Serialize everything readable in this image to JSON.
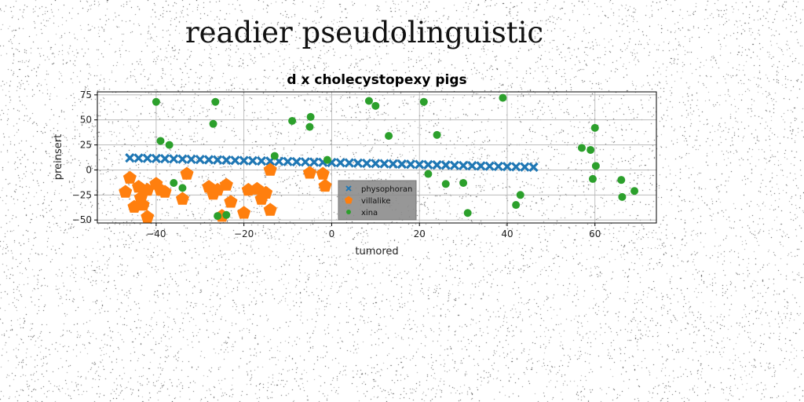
{
  "page": {
    "title": "readier pseudolinguistic"
  },
  "chart_data": {
    "type": "scatter",
    "title": "d x cholecystopexy pigs",
    "xlabel": "tumored",
    "ylabel": "preinsert",
    "xlim": [
      -53.4,
      74
    ],
    "ylim": [
      -53,
      78
    ],
    "xticks": [
      -40,
      -20,
      0,
      20,
      40,
      60
    ],
    "yticks": [
      -50,
      -25,
      0,
      25,
      50,
      75
    ],
    "grid": true,
    "legend_position": "lower-center",
    "series": [
      {
        "name": "physophoran",
        "marker": "x",
        "color": "#1f77b4",
        "x": [
          -46,
          -44,
          -42,
          -40,
          -38,
          -36,
          -34,
          -32,
          -30,
          -28,
          -26,
          -24,
          -22,
          -20,
          -18,
          -16,
          -14,
          -12,
          -10,
          -8,
          -6,
          -4,
          -2,
          0,
          2,
          4,
          6,
          8,
          10,
          12,
          14,
          16,
          18,
          20,
          22,
          24,
          26,
          28,
          30,
          32,
          34,
          36,
          38,
          40,
          42,
          44,
          46
        ],
        "y": [
          12,
          11.8,
          11.6,
          11.4,
          11.2,
          11,
          10.8,
          10.6,
          10.4,
          10.2,
          10,
          9.8,
          9.6,
          9.4,
          9.2,
          9,
          8.8,
          8.6,
          8.4,
          8.2,
          8,
          7.8,
          7.6,
          7.4,
          7.2,
          7,
          6.8,
          6.6,
          6.4,
          6.2,
          6,
          5.8,
          5.6,
          5.4,
          5.2,
          5,
          4.8,
          4.6,
          4.4,
          4.2,
          4,
          3.8,
          3.6,
          3.4,
          3.2,
          3,
          2.8
        ]
      },
      {
        "name": "villalike",
        "marker": "pentagon",
        "color": "#ff7f0e",
        "x": [
          -47,
          -46,
          -45,
          -44,
          -43.5,
          -43,
          -42,
          -42,
          -40,
          -39,
          -38,
          -34,
          -33,
          -28,
          -27,
          -26,
          -25,
          -24,
          -23,
          -20,
          -19,
          -17,
          -16,
          -15,
          -14,
          -14,
          -5,
          -2,
          -1.5
        ],
        "y": [
          -22,
          -8,
          -37,
          -17,
          -28,
          -35,
          -47,
          -20,
          -14,
          -20,
          -22,
          -29,
          -4,
          -17,
          -24,
          -20,
          -46,
          -15,
          -32,
          -43,
          -20,
          -19,
          -29,
          -23,
          -40,
          0,
          -3,
          -4,
          -16
        ]
      },
      {
        "name": "xina",
        "marker": "circle",
        "color": "#2ca02c",
        "x": [
          -40,
          -39,
          -37,
          -36,
          -34,
          -27,
          -26.5,
          -26,
          -24,
          -13,
          -9,
          -5,
          -4.8,
          -1,
          8.5,
          10,
          13,
          21,
          22,
          24,
          26,
          30,
          31,
          39,
          42,
          43,
          57,
          59,
          59.5,
          60,
          60.2,
          66,
          66.2,
          69
        ],
        "y": [
          68,
          29,
          25,
          -13,
          -18,
          46,
          68,
          -46,
          -45,
          14,
          49,
          43,
          53,
          10,
          69,
          64,
          34,
          68,
          -4,
          35,
          -14,
          -13,
          -43,
          72,
          -35,
          -25,
          22,
          20,
          -9,
          42,
          4,
          -10,
          -27,
          -21
        ]
      }
    ]
  }
}
